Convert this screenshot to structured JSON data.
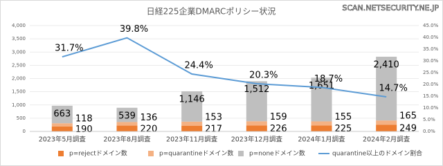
{
  "chart_data": {
    "type": "bar_line",
    "title": "日経225企業DMARCポリシー状況",
    "source": "SCAN.NETSECURITY.NE.JP",
    "categories": [
      "2023年5月調査",
      "2023年8月調査",
      "2023年11月調査",
      "2023年12月調査",
      "2024年1月調査",
      "2024年2月調査"
    ],
    "series": [
      {
        "name": "p=rejectドメイン数",
        "color": "#ed7d31",
        "values": [
          190,
          220,
          217,
          226,
          225,
          249
        ]
      },
      {
        "name": "p=quarantineドメイン数",
        "color": "#f4b183",
        "values": [
          118,
          136,
          153,
          159,
          155,
          165
        ]
      },
      {
        "name": "p=noneドメイン数",
        "color": "#bfbfbf",
        "values": [
          663,
          539,
          1146,
          1512,
          1651,
          2410
        ],
        "value_labels": [
          "663",
          "539",
          "1,146",
          "1,512",
          "1,651",
          "2,410"
        ]
      },
      {
        "name": "quarantine以上のドメイン割合",
        "color": "#5b9bd5",
        "axis": "y2",
        "type": "line",
        "values": [
          31.7,
          39.8,
          24.4,
          20.3,
          18.7,
          14.7
        ],
        "value_labels": [
          "31.7%",
          "39.8%",
          "24.4%",
          "20.3%",
          "18.7%",
          "14.7%"
        ]
      }
    ],
    "ylim": [
      0,
      4000
    ],
    "yticks": [
      0,
      500,
      {
        "value": 1000,
        "label": "1,000"
      },
      {
        "value": 1500,
        "label": "1,500"
      },
      {
        "value": 2000,
        "label": "2,000"
      },
      {
        "value": 2500,
        "label": "2,500"
      },
      {
        "value": 3000,
        "label": "3,000"
      },
      {
        "value": 3500,
        "label": "3,500"
      },
      {
        "value": 4000,
        "label": "4,000"
      }
    ],
    "y2lim": [
      0,
      45
    ],
    "y2ticks": [
      {
        "value": 0,
        "label": "0.0%"
      },
      {
        "value": 5,
        "label": "5.0%"
      },
      {
        "value": 10,
        "label": "10.0%"
      },
      {
        "value": 15,
        "label": "15.0%"
      },
      {
        "value": 20,
        "label": "20.0%"
      },
      {
        "value": 25,
        "label": "25.0%"
      },
      {
        "value": 30,
        "label": "30.0%"
      },
      {
        "value": 35,
        "label": "35.0%"
      },
      {
        "value": 40,
        "label": "40.0%"
      },
      {
        "value": 45,
        "label": "45.0%"
      }
    ],
    "grid": true
  }
}
